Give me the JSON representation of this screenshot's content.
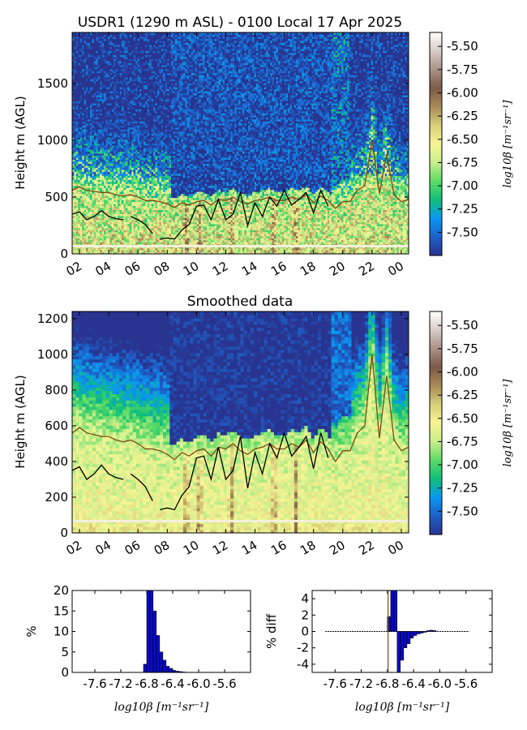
{
  "colors": {
    "cmap": [
      "#28348f",
      "#1e5fc8",
      "#0a98f2",
      "#10bf78",
      "#5cdb66",
      "#c9ee8c",
      "#f7f594",
      "#d8cf7a",
      "#a98b58",
      "#7b5a48",
      "#a99185",
      "#d8cbc6",
      "#ffffff"
    ],
    "brown_line": "#7a4a10",
    "black_line": "#000000",
    "hist_bar": "#0b0bd0"
  },
  "chart_data": [
    {
      "type": "heatmap",
      "title": "USDR1 (1290 m ASL) - 0100 Local 17 Apr 2025",
      "xlabel": "",
      "ylabel": "Height m (AGL)",
      "xlim": [
        1.5,
        24.5
      ],
      "ylim": [
        0,
        1950
      ],
      "xticks": [
        "02",
        "04",
        "06",
        "08",
        "10",
        "12",
        "14",
        "16",
        "18",
        "20",
        "22",
        "00"
      ],
      "yticks": [
        0,
        500,
        1000,
        1500
      ],
      "colorbar": {
        "label": "log10β [m⁻¹sr⁻¹]",
        "range": [
          -7.75,
          -5.35
        ],
        "ticks": [
          "-5.50",
          "-5.75",
          "-6.00",
          "-6.25",
          "-6.50",
          "-6.75",
          "-7.00",
          "-7.25",
          "-7.50"
        ]
      },
      "overlay_series": [
        {
          "color": "brown",
          "x": [
            1.5,
            2,
            2.5,
            3,
            3.5,
            4,
            4.5,
            5,
            5.5,
            6,
            6.5,
            7,
            7.5,
            8,
            8.5,
            9,
            9.5,
            10,
            10.5,
            11,
            11.5,
            12,
            12.5,
            13,
            13.5,
            14,
            14.5,
            15,
            15.5,
            16,
            16.5,
            17,
            17.5,
            18,
            18.5,
            19,
            19.5,
            20,
            20.5,
            21,
            21.5,
            22,
            22.5,
            23,
            23.5,
            24,
            24.5
          ],
          "y": [
            560,
            590,
            560,
            550,
            540,
            540,
            520,
            510,
            520,
            500,
            470,
            470,
            460,
            440,
            410,
            450,
            430,
            460,
            470,
            430,
            480,
            470,
            500,
            460,
            440,
            470,
            480,
            500,
            470,
            470,
            500,
            480,
            520,
            450,
            510,
            470,
            400,
            460,
            460,
            560,
            600,
            1000,
            530,
            880,
            520,
            460,
            480
          ]
        },
        {
          "color": "black",
          "x": [
            1.5,
            2,
            2.5,
            3,
            3.5,
            4,
            4.5,
            5,
            null,
            5.5,
            6,
            6.5,
            7,
            null,
            7.5,
            8,
            8.5,
            9,
            9.5,
            10,
            10.5,
            11,
            11.5,
            12,
            12.5,
            13,
            13.5,
            14,
            14.5,
            15,
            15.5,
            16,
            16.5,
            17,
            17.5,
            18,
            18.5,
            19
          ],
          "y": [
            350,
            370,
            300,
            330,
            380,
            330,
            310,
            300,
            null,
            330,
            300,
            260,
            180,
            null,
            130,
            140,
            130,
            210,
            260,
            420,
            430,
            300,
            480,
            300,
            350,
            540,
            250,
            450,
            330,
            500,
            420,
            560,
            430,
            480,
            540,
            360,
            560,
            420
          ]
        }
      ]
    },
    {
      "type": "heatmap",
      "title": "Smoothed data",
      "xlabel": "",
      "ylabel": "Height m (AGL)",
      "xlim": [
        1.5,
        24.5
      ],
      "ylim": [
        0,
        1240
      ],
      "xticks": [
        "02",
        "04",
        "06",
        "08",
        "10",
        "12",
        "14",
        "16",
        "18",
        "20",
        "22",
        "00"
      ],
      "yticks": [
        0,
        200,
        400,
        600,
        800,
        1000,
        1200
      ],
      "colorbar": {
        "label": "log10β [m⁻¹sr⁻¹]",
        "range": [
          -7.75,
          -5.35
        ],
        "ticks": [
          "-5.50",
          "-5.75",
          "-6.00",
          "-6.25",
          "-6.50",
          "-6.75",
          "-7.00",
          "-7.25",
          "-7.50"
        ]
      }
    },
    {
      "type": "bar",
      "xlabel": "log10β [m⁻¹sr⁻¹]",
      "ylabel": "%",
      "xlim": [
        -7.95,
        -5.2
      ],
      "ylim": [
        0,
        20
      ],
      "xticks": [
        "-7.6",
        "-7.2",
        "-6.8",
        "-6.4",
        "-6.0",
        "-5.6"
      ],
      "yticks": [
        0,
        5,
        10,
        15,
        20
      ],
      "x": [
        -6.85,
        -6.8,
        -6.75,
        -6.7,
        -6.65,
        -6.6,
        -6.55,
        -6.5,
        -6.45,
        -6.4,
        -6.35,
        -6.3,
        -6.25
      ],
      "values": [
        2,
        20,
        20,
        15,
        9,
        5,
        3,
        1.5,
        1,
        0.5,
        0.3,
        0.2,
        0.1
      ]
    },
    {
      "type": "bar",
      "xlabel": "log10β [m⁻¹sr⁻¹]",
      "ylabel": "% diff",
      "xlim": [
        -7.95,
        -5.2
      ],
      "ylim": [
        -5,
        5
      ],
      "xticks": [
        "-7.6",
        "-7.2",
        "-6.8",
        "-6.4",
        "-6.0",
        "-5.6"
      ],
      "yticks": [
        4,
        2,
        0,
        -2,
        -4
      ],
      "x": [
        -6.8,
        -6.75,
        -6.7,
        -6.65,
        -6.6,
        -6.55,
        -6.5,
        -6.45,
        -6.4,
        -6.35,
        -6.3,
        -6.25,
        -6.2,
        -6.15,
        -6.1
      ],
      "values": [
        1.8,
        5,
        5,
        -5,
        -3.5,
        -2,
        -1.5,
        -0.8,
        -0.5,
        -0.3,
        -0.2,
        -0.1,
        0.1,
        0.15,
        0.1
      ]
    }
  ]
}
